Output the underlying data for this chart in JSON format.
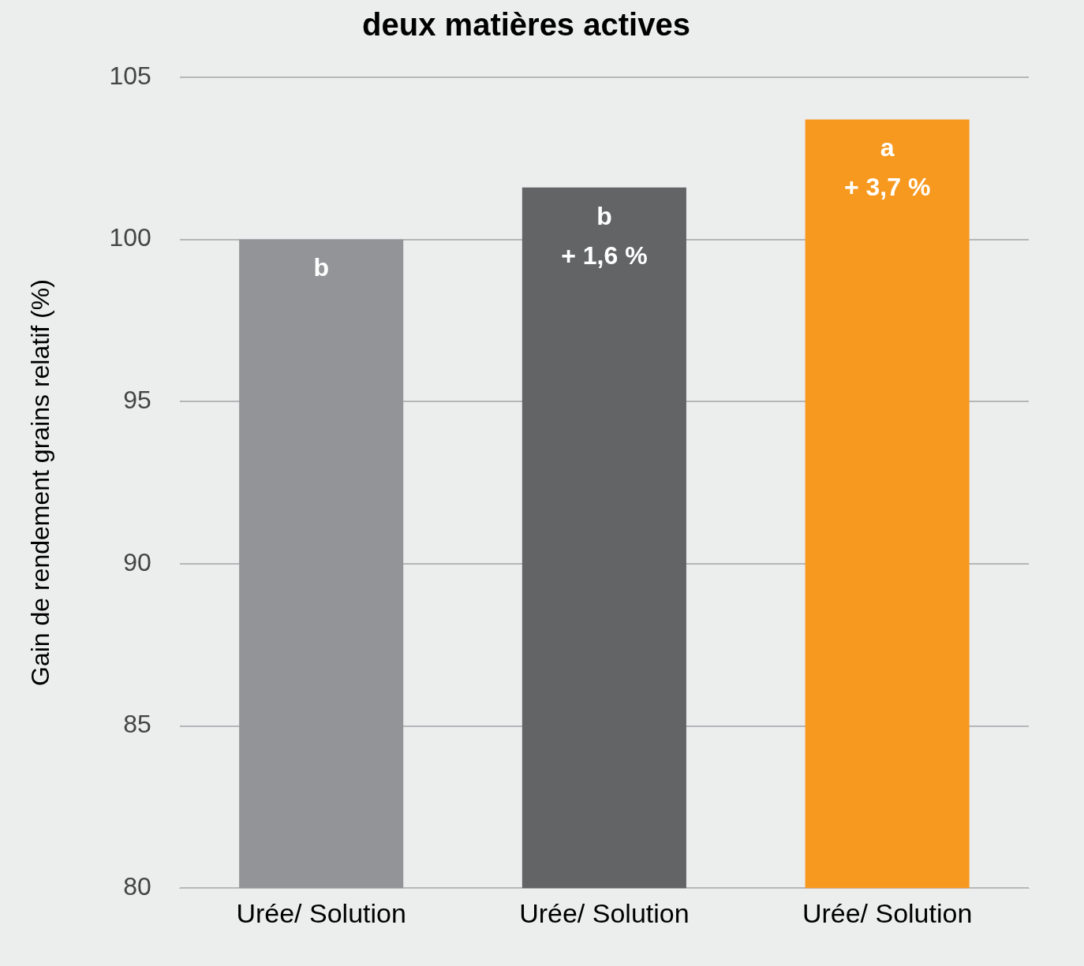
{
  "chart_data": {
    "type": "bar",
    "title": "deux matières actives",
    "ylabel": "Gain de rendement grains relatif (%)",
    "categories": [
      "Urée/ Solution",
      "Urée/ Solution",
      "Urée/ Solution"
    ],
    "values": [
      100,
      101.6,
      103.7
    ],
    "colors": [
      "#939497",
      "#636466",
      "#f7991f"
    ],
    "annotations": [
      "b",
      "b\n+ 1,6 %",
      "a\n+ 3,7 %"
    ],
    "ylim": [
      80,
      105
    ],
    "yticks": [
      80,
      85,
      90,
      95,
      100,
      105
    ],
    "grid": "y",
    "legend": false
  }
}
